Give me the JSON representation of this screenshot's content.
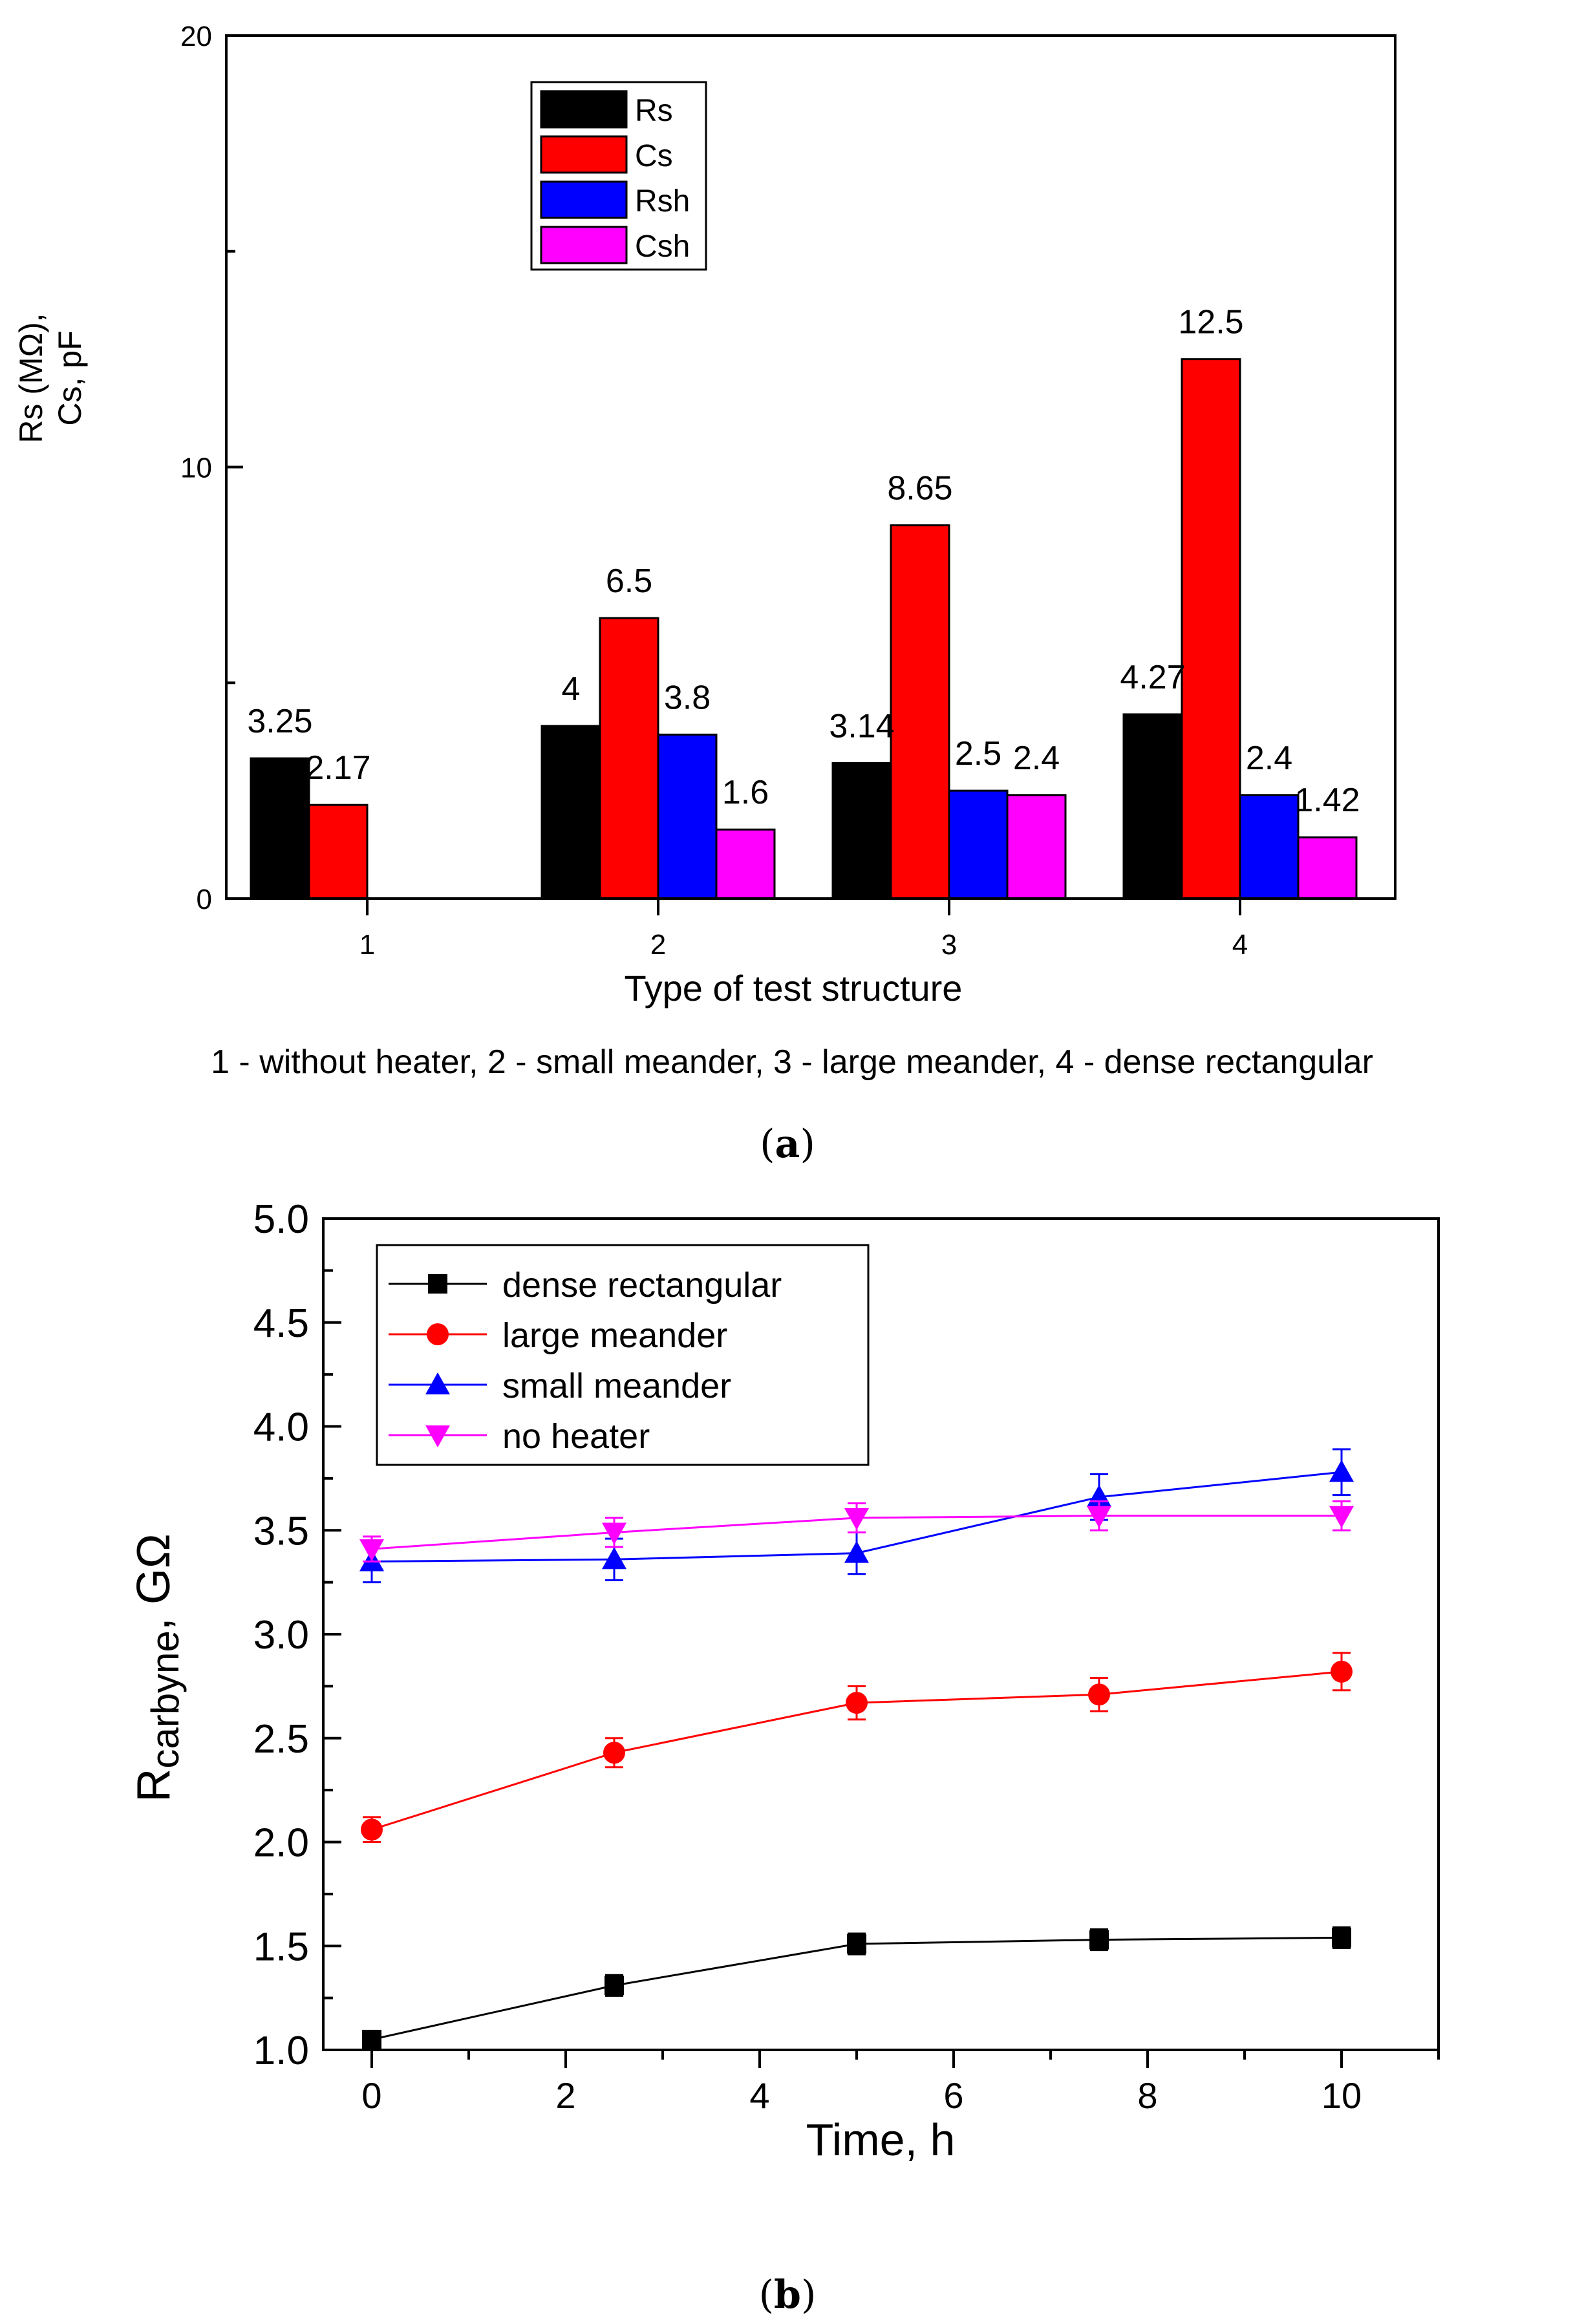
{
  "chart_data": [
    {
      "type": "bar",
      "panel": "a",
      "ylabel_lines": [
        "Rs (MΩ),",
        "Cs, pF"
      ],
      "xlabel": "Type of test structure",
      "note": "1 - without heater, 2 - small meander, 3 - large meander, 4 - dense rectangular",
      "ylim": [
        0,
        20
      ],
      "yticks": [
        0,
        10,
        20
      ],
      "categories": [
        "1",
        "2",
        "3",
        "4"
      ],
      "colors": [
        "#000000",
        "#ff0000",
        "#0000ff",
        "#ff00ff"
      ],
      "series": [
        {
          "name": "Rs",
          "values": [
            3.25,
            4,
            3.14,
            4.27
          ],
          "labels": [
            "3.25",
            "4",
            "3.14",
            "4.27"
          ]
        },
        {
          "name": "Cs",
          "values": [
            2.17,
            6.5,
            8.65,
            12.5
          ],
          "labels": [
            "2.17",
            "6.5",
            "8.65",
            "12.5"
          ]
        },
        {
          "name": "Rsh",
          "values": [
            null,
            3.8,
            2.5,
            2.4
          ],
          "labels": [
            "",
            "3.8",
            "2.5",
            "2.4"
          ]
        },
        {
          "name": "Csh",
          "values": [
            null,
            1.6,
            2.4,
            1.42
          ],
          "labels": [
            "",
            "1.6",
            "2.4",
            "1.42"
          ]
        }
      ],
      "legend_position": "top-left"
    },
    {
      "type": "line",
      "panel": "b",
      "ylabel_main": "R",
      "ylabel_sub": "carbyne",
      "ylabel_rest": ", GΩ",
      "xlabel": "Time, h",
      "xlim": [
        -0.5,
        11
      ],
      "ylim": [
        1.0,
        5.0
      ],
      "xticks": [
        0,
        2,
        4,
        6,
        8,
        10
      ],
      "yticks": [
        "1.0",
        "1.5",
        "2.0",
        "2.5",
        "3.0",
        "3.5",
        "4.0",
        "4.5",
        "5.0"
      ],
      "legend_position": "top-left",
      "series": [
        {
          "name": "dense rectangular",
          "color": "#000000",
          "marker": "square",
          "x": [
            0,
            2.5,
            5,
            7.5,
            10
          ],
          "y": [
            1.05,
            1.31,
            1.51,
            1.53,
            1.54
          ],
          "err": [
            0.03,
            0.05,
            0.05,
            0.05,
            0.05
          ]
        },
        {
          "name": "large meander",
          "color": "#ff0000",
          "marker": "circle",
          "x": [
            0,
            2.5,
            5,
            7.5,
            10
          ],
          "y": [
            2.06,
            2.43,
            2.67,
            2.71,
            2.82
          ],
          "err": [
            0.06,
            0.07,
            0.08,
            0.08,
            0.09
          ]
        },
        {
          "name": "small meander",
          "color": "#0000ff",
          "marker": "triangle-up",
          "x": [
            0,
            2.5,
            5,
            7.5,
            10
          ],
          "y": [
            3.35,
            3.36,
            3.39,
            3.66,
            3.78
          ],
          "err": [
            0.1,
            0.1,
            0.1,
            0.11,
            0.11
          ]
        },
        {
          "name": " no heater",
          "color": "#ff00ff",
          "marker": "triangle-down",
          "x": [
            0,
            2.5,
            5,
            7.5,
            10
          ],
          "y": [
            3.41,
            3.49,
            3.56,
            3.57,
            3.57
          ],
          "err": [
            0.06,
            0.07,
            0.07,
            0.07,
            0.07
          ]
        }
      ]
    }
  ],
  "captions": {
    "a": {
      "open": "(",
      "letter": "a",
      "close": ")"
    },
    "b": {
      "open": "(",
      "letter": "b",
      "close": ")"
    }
  }
}
